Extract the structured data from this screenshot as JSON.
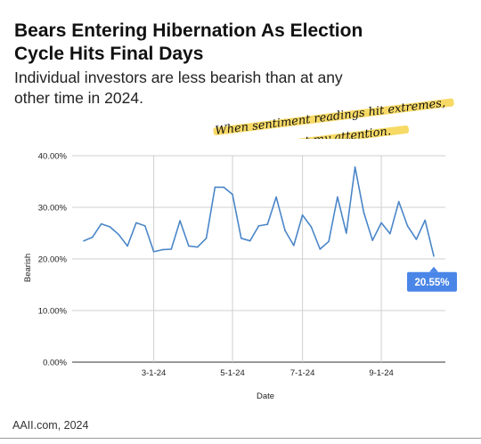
{
  "header": {
    "title": "Bears Entering Hibernation As Election Cycle Hits Final Days",
    "subtitle": "Individual investors are less bearish than at any other time in 2024."
  },
  "annotation": {
    "line1": "When sentiment readings hit extremes,",
    "line2": "they get my attention.",
    "highlight_color": "#f6d24a"
  },
  "footer": {
    "source": "AAII.com, 2024"
  },
  "colors": {
    "line": "#4a86c8",
    "callout": "#4a86e8",
    "gridline": "#cfcfcf"
  },
  "chart_data": {
    "type": "line",
    "xlabel": "Date",
    "ylabel": "Bearish",
    "ylim": [
      0,
      0.4
    ],
    "yticks": [
      {
        "value": 0.0,
        "label": "0.00%"
      },
      {
        "value": 0.1,
        "label": "10.00%"
      },
      {
        "value": 0.2,
        "label": "20.00%"
      },
      {
        "value": 0.3,
        "label": "30.00%"
      },
      {
        "value": 0.4,
        "label": "40.00%"
      }
    ],
    "xticks": [
      {
        "week": 8,
        "label": "3-1-24"
      },
      {
        "week": 17,
        "label": "5-1-24"
      },
      {
        "week": 25,
        "label": "7-1-24"
      },
      {
        "week": 34,
        "label": "9-1-24"
      }
    ],
    "gridlines": true,
    "series": [
      {
        "values": [
          0.235,
          0.242,
          0.268,
          0.262,
          0.247,
          0.225,
          0.27,
          0.264,
          0.214,
          0.218,
          0.219,
          0.274,
          0.225,
          0.223,
          0.24,
          0.339,
          0.339,
          0.325,
          0.24,
          0.235,
          0.264,
          0.267,
          0.32,
          0.255,
          0.226,
          0.285,
          0.262,
          0.219,
          0.234,
          0.32,
          0.25,
          0.378,
          0.29,
          0.236,
          0.27,
          0.249,
          0.311,
          0.264,
          0.238,
          0.275,
          0.2055
        ]
      }
    ],
    "last_value_label": "20.55%"
  }
}
